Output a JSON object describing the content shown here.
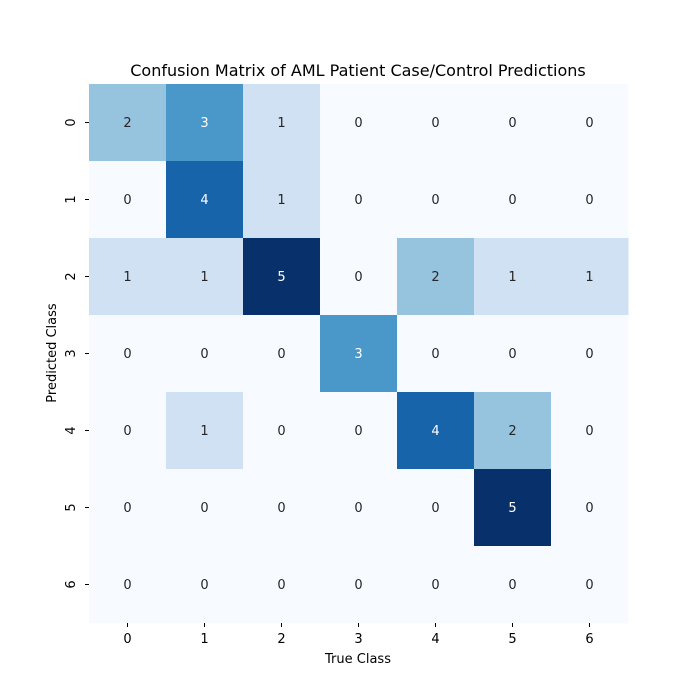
{
  "chart_data": {
    "type": "heatmap",
    "title": "Confusion Matrix of AML Patient Case/Control Predictions",
    "xlabel": "True Class",
    "ylabel": "Predicted Class",
    "x_categories": [
      "0",
      "1",
      "2",
      "3",
      "4",
      "5",
      "6"
    ],
    "y_categories": [
      "0",
      "1",
      "2",
      "3",
      "4",
      "5",
      "6"
    ],
    "matrix": [
      [
        2,
        3,
        1,
        0,
        0,
        0,
        0
      ],
      [
        0,
        4,
        1,
        0,
        0,
        0,
        0
      ],
      [
        1,
        1,
        5,
        0,
        2,
        1,
        1
      ],
      [
        0,
        0,
        0,
        3,
        0,
        0,
        0
      ],
      [
        0,
        1,
        0,
        0,
        4,
        2,
        0
      ],
      [
        0,
        0,
        0,
        0,
        0,
        5,
        0
      ],
      [
        0,
        0,
        0,
        0,
        0,
        0,
        0
      ]
    ],
    "vmin": 0,
    "vmax": 5,
    "colormap": "Blues",
    "colorbar": false,
    "annotations": true
  }
}
